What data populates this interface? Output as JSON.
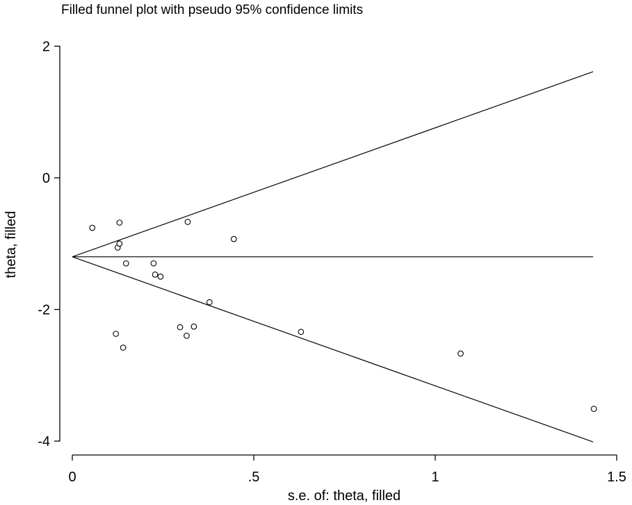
{
  "chart_data": {
    "type": "scatter",
    "title": "Filled funnel plot with pseudo 95% confidence limits",
    "xlabel": "s.e. of: theta, filled",
    "ylabel": "theta, filled",
    "xlim": [
      0,
      1.5
    ],
    "ylim": [
      -4,
      2
    ],
    "xticks": [
      {
        "value": 0,
        "label": "0"
      },
      {
        "value": 0.5,
        "label": ".5"
      },
      {
        "value": 1,
        "label": "1"
      },
      {
        "value": 1.5,
        "label": "1.5"
      }
    ],
    "yticks": [
      {
        "value": -4,
        "label": "-4"
      },
      {
        "value": -2,
        "label": "-2"
      },
      {
        "value": 0,
        "label": "0"
      },
      {
        "value": 2,
        "label": "2"
      }
    ],
    "pooled_estimate": -1.2,
    "funnel_max_se": 1.435,
    "points": [
      {
        "x": 0.055,
        "y": -0.76
      },
      {
        "x": 0.13,
        "y": -0.68
      },
      {
        "x": 0.125,
        "y": -1.06
      },
      {
        "x": 0.13,
        "y": -1.0
      },
      {
        "x": 0.148,
        "y": -1.3
      },
      {
        "x": 0.12,
        "y": -2.37
      },
      {
        "x": 0.14,
        "y": -2.58
      },
      {
        "x": 0.224,
        "y": -1.3
      },
      {
        "x": 0.228,
        "y": -1.47
      },
      {
        "x": 0.243,
        "y": -1.5
      },
      {
        "x": 0.297,
        "y": -2.27
      },
      {
        "x": 0.315,
        "y": -2.4
      },
      {
        "x": 0.318,
        "y": -0.67
      },
      {
        "x": 0.335,
        "y": -2.26
      },
      {
        "x": 0.378,
        "y": -1.89
      },
      {
        "x": 0.445,
        "y": -0.93
      },
      {
        "x": 0.63,
        "y": -2.34
      },
      {
        "x": 1.07,
        "y": -2.67
      },
      {
        "x": 1.437,
        "y": -3.51
      }
    ]
  }
}
